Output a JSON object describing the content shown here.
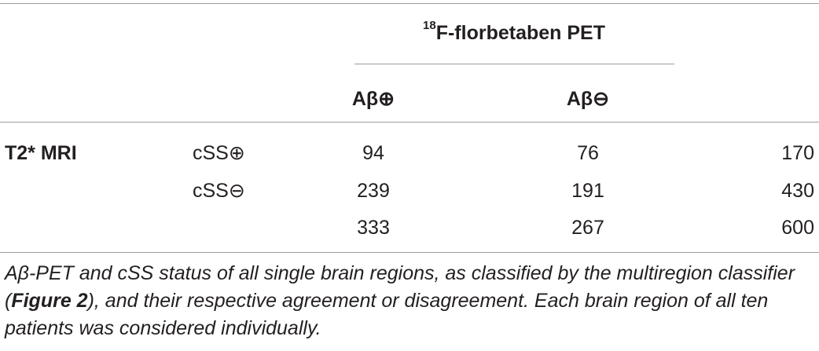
{
  "table": {
    "header_group": {
      "superscript": "18",
      "label": "F-florbetaben PET"
    },
    "col_headers": [
      "Aβ⊕",
      "Aβ⊖"
    ],
    "row_group_label": "T2* MRI",
    "rows": [
      {
        "label": "cSS⊕",
        "values": [
          "94",
          "76",
          "170"
        ]
      },
      {
        "label": "cSS⊖",
        "values": [
          "239",
          "191",
          "430"
        ]
      },
      {
        "label": "",
        "values": [
          "333",
          "267",
          "600"
        ]
      }
    ]
  },
  "caption": {
    "part1": "Aβ-PET and cSS status of all single brain regions, as classified by the multiregion classifier (",
    "link": "Figure 2",
    "part2": "), and their respective agreement or disagreement. Each brain region of all ten patients was considered individually."
  }
}
